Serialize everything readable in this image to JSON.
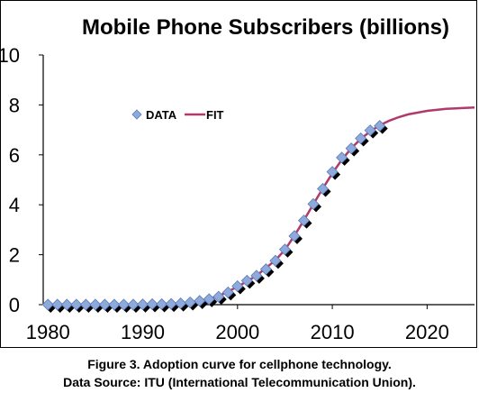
{
  "chart_data": {
    "type": "scatter",
    "title": "Mobile Phone Subscribers (billions)",
    "xlim": [
      1979.5,
      2025
    ],
    "ylim": [
      0,
      10
    ],
    "x_ticks": [
      1980,
      1990,
      2000,
      2010,
      2020
    ],
    "y_ticks": [
      0,
      2,
      4,
      6,
      8,
      10
    ],
    "grid": false,
    "legend": "top-left",
    "series": [
      {
        "name": "DATA",
        "kind": "markers",
        "marker": "diamond",
        "color": "#8EA9DB",
        "x": [
          1980,
          1981,
          1982,
          1983,
          1984,
          1985,
          1986,
          1987,
          1988,
          1989,
          1990,
          1991,
          1992,
          1993,
          1994,
          1995,
          1996,
          1997,
          1998,
          1999,
          2000,
          2001,
          2002,
          2003,
          2004,
          2005,
          2006,
          2007,
          2008,
          2009,
          2010,
          2011,
          2012,
          2013,
          2014,
          2015
        ],
        "y": [
          0,
          0,
          0,
          0,
          0,
          0,
          0,
          0,
          0,
          0,
          0.01,
          0.02,
          0.02,
          0.03,
          0.05,
          0.09,
          0.15,
          0.22,
          0.32,
          0.49,
          0.74,
          0.96,
          1.16,
          1.42,
          1.76,
          2.21,
          2.75,
          3.37,
          4.03,
          4.64,
          5.32,
          5.89,
          6.26,
          6.66,
          6.98,
          7.16
        ]
      },
      {
        "name": "FIT",
        "kind": "line",
        "color": "#B03A6E",
        "x": [
          1980,
          1985,
          1990,
          1994,
          1996,
          1998,
          2000,
          2002,
          2004,
          2005,
          2006,
          2007,
          2008,
          2009,
          2010,
          2011,
          2012,
          2013,
          2014,
          2015,
          2016,
          2017,
          2018,
          2020,
          2022,
          2025
        ],
        "y": [
          0,
          0,
          0,
          0.05,
          0.13,
          0.34,
          0.72,
          1.16,
          1.78,
          2.2,
          2.76,
          3.38,
          4.02,
          4.66,
          5.26,
          5.8,
          6.26,
          6.64,
          6.94,
          7.18,
          7.37,
          7.51,
          7.62,
          7.76,
          7.84,
          7.9
        ]
      }
    ]
  },
  "caption": {
    "line1": "Figure 3. Adoption curve for cellphone technology.",
    "line2": "Data Source: ITU (International Telecommunication Union)."
  }
}
